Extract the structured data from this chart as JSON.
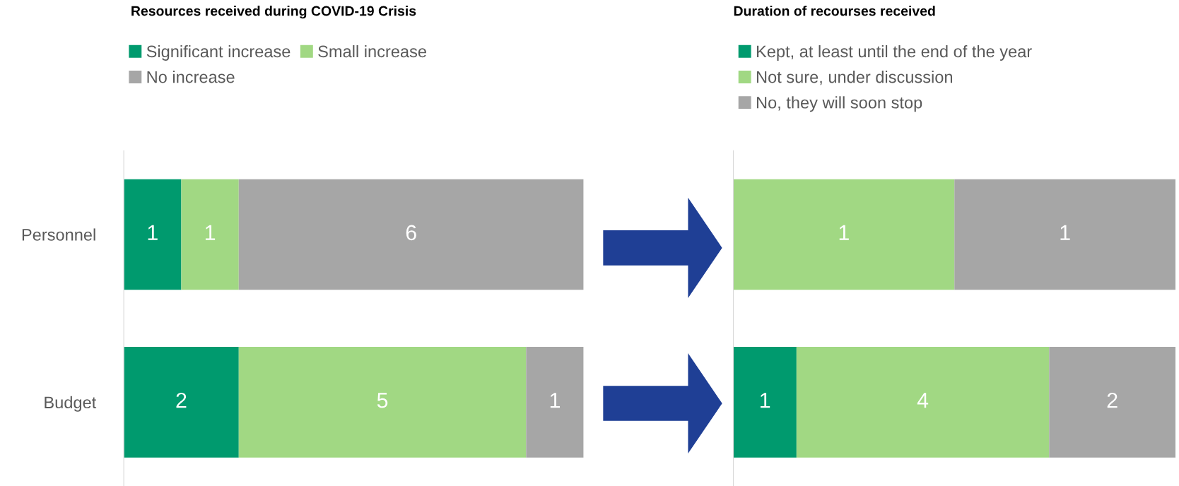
{
  "chart_data": [
    {
      "type": "bar",
      "orientation": "horizontal",
      "stacked": true,
      "title": "Resources received during COVID-19 Crisis",
      "categories": [
        "Personnel",
        "Budget"
      ],
      "data_labels": true,
      "legend": "top",
      "grid": false,
      "series": [
        {
          "name": "Significant increase",
          "color": "#009a6e",
          "values": [
            1,
            2
          ]
        },
        {
          "name": "Small increase",
          "color": "#a1d883",
          "values": [
            1,
            5
          ]
        },
        {
          "name": "No increase",
          "color": "#a6a6a6",
          "values": [
            6,
            1
          ]
        }
      ]
    },
    {
      "type": "bar",
      "orientation": "horizontal",
      "stacked": true,
      "title": "Duration of recourses received",
      "categories": [
        null
      ],
      "data_labels": true,
      "grid": false,
      "series": [
        {
          "color": "#a1d883",
          "values": [
            1
          ]
        },
        {
          "color": "#a6a6a6",
          "values": [
            1
          ]
        }
      ]
    },
    {
      "type": "bar",
      "orientation": "horizontal",
      "stacked": true,
      "categories": [
        null
      ],
      "data_labels": true,
      "legend": "top",
      "grid": false,
      "series": [
        {
          "name": "Kept, at least until the end of the year",
          "color": "#009a6e",
          "values": [
            1
          ]
        },
        {
          "name": "Not sure, under discussion",
          "color": "#a1d883",
          "values": [
            4
          ]
        },
        {
          "name": "No, they will soon stop",
          "color": "#a6a6a6",
          "values": [
            2
          ]
        }
      ]
    }
  ]
}
